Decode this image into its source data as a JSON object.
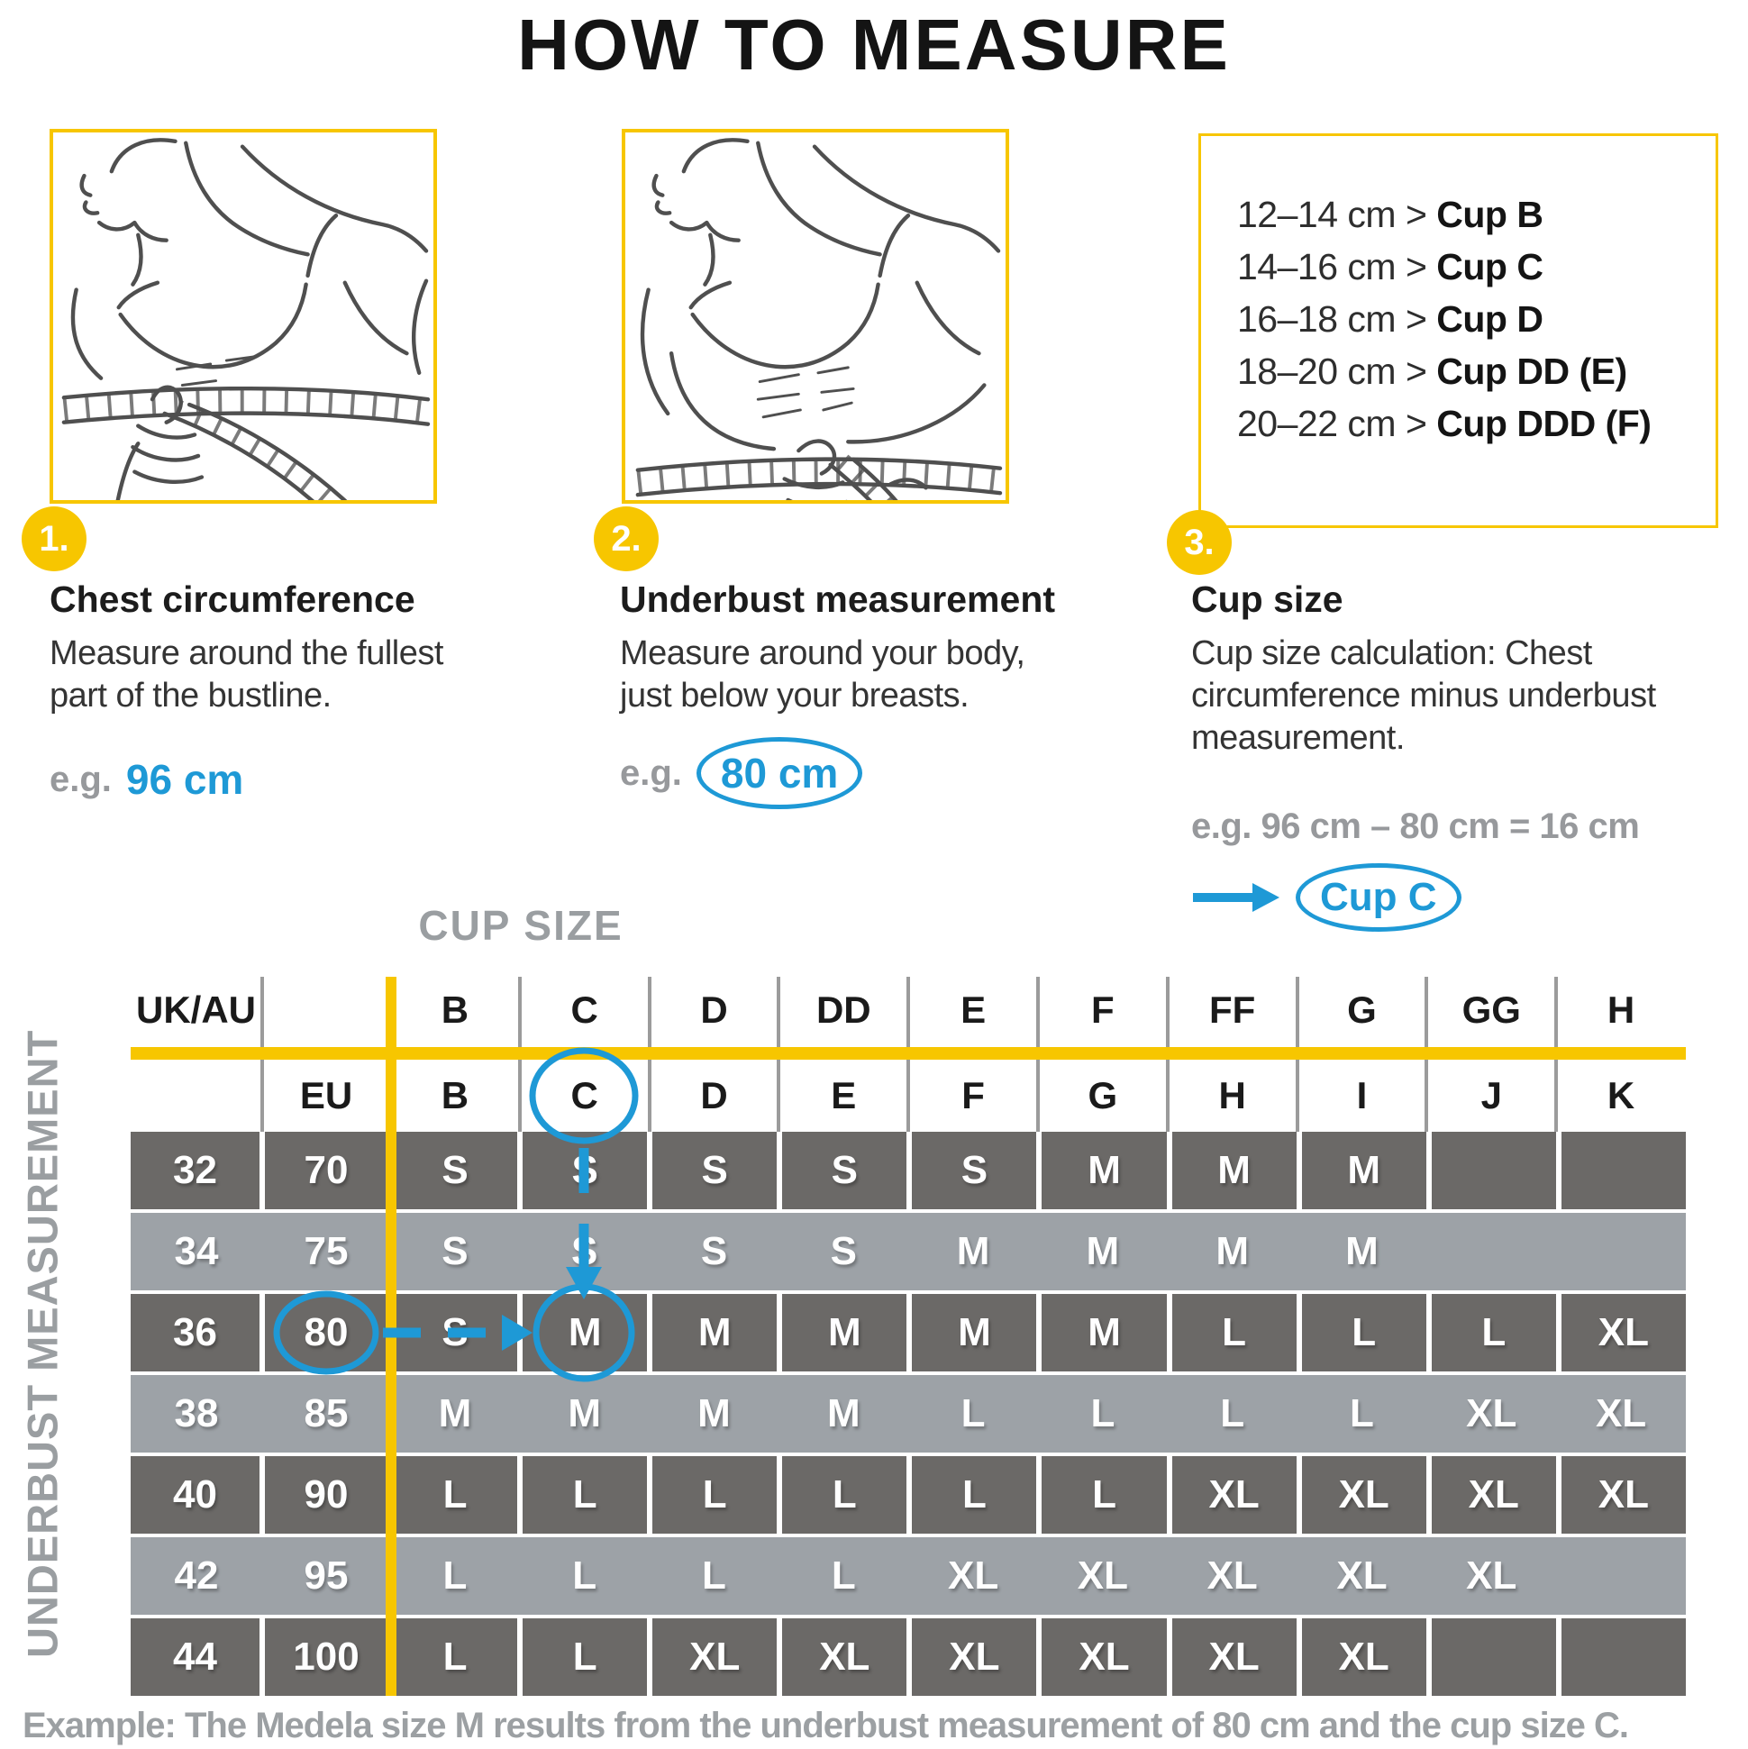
{
  "title": "HOW TO MEASURE",
  "steps": [
    {
      "number": "1.",
      "heading": "Chest circumference",
      "body_lines": [
        "Measure around the fullest",
        "part of the bustline."
      ],
      "example_prefix": "e.g.",
      "example_value": "96 cm"
    },
    {
      "number": "2.",
      "heading": "Underbust measurement",
      "body_lines": [
        "Measure around your body,",
        "just below your breasts."
      ],
      "example_prefix": "e.g.",
      "example_value": "80 cm"
    },
    {
      "number": "3.",
      "heading": "Cup size",
      "body_lines": [
        "Cup size calculation: Chest",
        "circumference minus underbust",
        "measurement."
      ],
      "example_formula": "e.g. 96 cm – 80 cm = 16 cm",
      "example_result": "Cup C"
    }
  ],
  "cup_ranges": [
    {
      "range": "12–14 cm",
      "separator": ">",
      "cup": "Cup B"
    },
    {
      "range": "14–16 cm",
      "separator": ">",
      "cup": "Cup C"
    },
    {
      "range": "16–18 cm",
      "separator": ">",
      "cup": "Cup D"
    },
    {
      "range": "18–20 cm",
      "separator": ">",
      "cup": "Cup DD (E)"
    },
    {
      "range": "20–22 cm",
      "separator": ">",
      "cup": "Cup DDD (F)"
    }
  ],
  "size_chart": {
    "title": "CUP SIZE",
    "row_axis_label": "UNDERBUST MEASUREMENT",
    "uk_au_label": "UK/AU",
    "eu_label": "EU",
    "uk_au_cups": [
      "B",
      "C",
      "D",
      "DD",
      "E",
      "F",
      "FF",
      "G",
      "GG",
      "H"
    ],
    "eu_cups": [
      "B",
      "C",
      "D",
      "E",
      "F",
      "G",
      "H",
      "I",
      "J",
      "K"
    ],
    "rows": [
      {
        "uk_au": "32",
        "eu": "70",
        "sizes": [
          "S",
          "S",
          "S",
          "S",
          "S",
          "M",
          "M",
          "M",
          "",
          ""
        ]
      },
      {
        "uk_au": "34",
        "eu": "75",
        "sizes": [
          "S",
          "S",
          "S",
          "S",
          "M",
          "M",
          "M",
          "M",
          "",
          ""
        ]
      },
      {
        "uk_au": "36",
        "eu": "80",
        "sizes": [
          "S",
          "M",
          "M",
          "M",
          "M",
          "M",
          "L",
          "L",
          "L",
          "XL"
        ]
      },
      {
        "uk_au": "38",
        "eu": "85",
        "sizes": [
          "M",
          "M",
          "M",
          "M",
          "L",
          "L",
          "L",
          "L",
          "XL",
          "XL"
        ]
      },
      {
        "uk_au": "40",
        "eu": "90",
        "sizes": [
          "L",
          "L",
          "L",
          "L",
          "L",
          "L",
          "XL",
          "XL",
          "XL",
          "XL"
        ]
      },
      {
        "uk_au": "42",
        "eu": "95",
        "sizes": [
          "L",
          "L",
          "L",
          "L",
          "XL",
          "XL",
          "XL",
          "XL",
          "XL",
          ""
        ]
      },
      {
        "uk_au": "44",
        "eu": "100",
        "sizes": [
          "L",
          "L",
          "XL",
          "XL",
          "XL",
          "XL",
          "XL",
          "XL",
          "",
          ""
        ]
      }
    ],
    "highlight": {
      "circled_eu_cup": "C",
      "circled_eu_band": "80",
      "circled_result_size": "M"
    }
  },
  "footer_example": "Example: The Medela size M results from the underbust measurement of 80 cm and the cup size C.",
  "colors": {
    "yellow": "#F7C600",
    "blue": "#1E99D6",
    "gray_text": "#97999C",
    "row_dark": "#6B6967",
    "row_light": "#9DA2A7"
  }
}
